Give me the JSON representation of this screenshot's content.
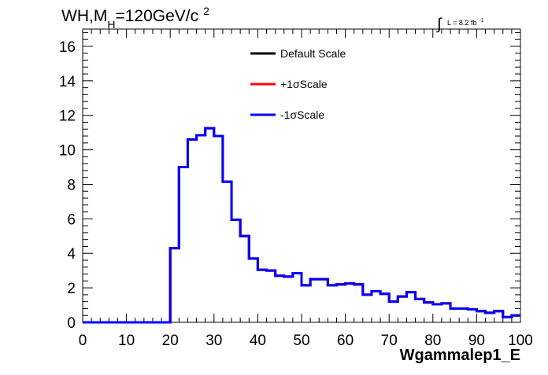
{
  "chart_data": {
    "type": "line",
    "title": {
      "prefix": "WH,M",
      "subscript": "H",
      "middle": "=120GeV/c",
      "superscript": "2"
    },
    "lumi": {
      "integral": "∫",
      "text": "L = 8.2 fb",
      "superscript": "-1"
    },
    "xlabel": "Wgammalep1_E",
    "ylabel": "",
    "xlim": [
      0,
      100
    ],
    "ylim": [
      0,
      17
    ],
    "xticks": [
      "0",
      "10",
      "20",
      "30",
      "40",
      "50",
      "60",
      "70",
      "80",
      "90",
      "100"
    ],
    "yticks": [
      "0",
      "2",
      "4",
      "6",
      "8",
      "10",
      "12",
      "14",
      "16"
    ],
    "xtick_values": [
      0,
      10,
      20,
      30,
      40,
      50,
      60,
      70,
      80,
      90,
      100
    ],
    "ytick_values": [
      0,
      2,
      4,
      6,
      8,
      10,
      12,
      14,
      16
    ],
    "grid": false,
    "legend_placement": "top-center",
    "bin_edges": [
      0,
      2,
      4,
      6,
      8,
      10,
      12,
      14,
      16,
      18,
      20,
      22,
      24,
      26,
      28,
      30,
      32,
      34,
      36,
      38,
      40,
      42,
      44,
      46,
      48,
      50,
      52,
      54,
      56,
      58,
      60,
      62,
      64,
      66,
      68,
      70,
      72,
      74,
      76,
      78,
      80,
      82,
      84,
      86,
      88,
      90,
      92,
      94,
      96,
      98,
      100
    ],
    "series": [
      {
        "name": "Default Scale",
        "color": "#000000",
        "values": [
          0,
          0,
          0,
          0,
          0,
          0,
          0,
          0,
          0,
          0,
          4.3,
          9.0,
          10.6,
          10.85,
          11.25,
          10.8,
          8.15,
          5.95,
          5.0,
          3.7,
          3.05,
          3.0,
          2.7,
          2.65,
          2.85,
          2.15,
          2.5,
          2.5,
          2.15,
          2.2,
          2.25,
          2.2,
          1.6,
          1.8,
          1.65,
          1.2,
          1.5,
          1.75,
          1.35,
          1.15,
          1.05,
          1.1,
          0.8,
          0.8,
          0.75,
          0.65,
          0.55,
          0.65,
          0.3,
          0.4
        ]
      },
      {
        "name": "+1σScale",
        "color": "#ff0000",
        "values": [
          0,
          0,
          0,
          0,
          0,
          0,
          0,
          0,
          0,
          0,
          4.3,
          9.0,
          10.6,
          10.85,
          11.25,
          10.8,
          8.15,
          5.95,
          5.0,
          3.7,
          3.05,
          3.0,
          2.7,
          2.65,
          2.85,
          2.15,
          2.5,
          2.5,
          2.15,
          2.2,
          2.25,
          2.2,
          1.6,
          1.8,
          1.65,
          1.2,
          1.5,
          1.75,
          1.35,
          1.15,
          1.05,
          1.1,
          0.8,
          0.8,
          0.75,
          0.65,
          0.55,
          0.65,
          0.3,
          0.4
        ]
      },
      {
        "name": "-1σScale",
        "color": "#0000ff",
        "values": [
          0,
          0,
          0,
          0,
          0,
          0,
          0,
          0,
          0,
          0,
          4.3,
          9.0,
          10.6,
          10.85,
          11.25,
          10.8,
          8.15,
          5.95,
          5.0,
          3.7,
          3.05,
          3.0,
          2.7,
          2.65,
          2.85,
          2.15,
          2.5,
          2.5,
          2.15,
          2.2,
          2.25,
          2.2,
          1.6,
          1.8,
          1.65,
          1.2,
          1.5,
          1.75,
          1.35,
          1.15,
          1.05,
          1.1,
          0.8,
          0.8,
          0.75,
          0.65,
          0.55,
          0.65,
          0.3,
          0.4
        ]
      }
    ]
  }
}
